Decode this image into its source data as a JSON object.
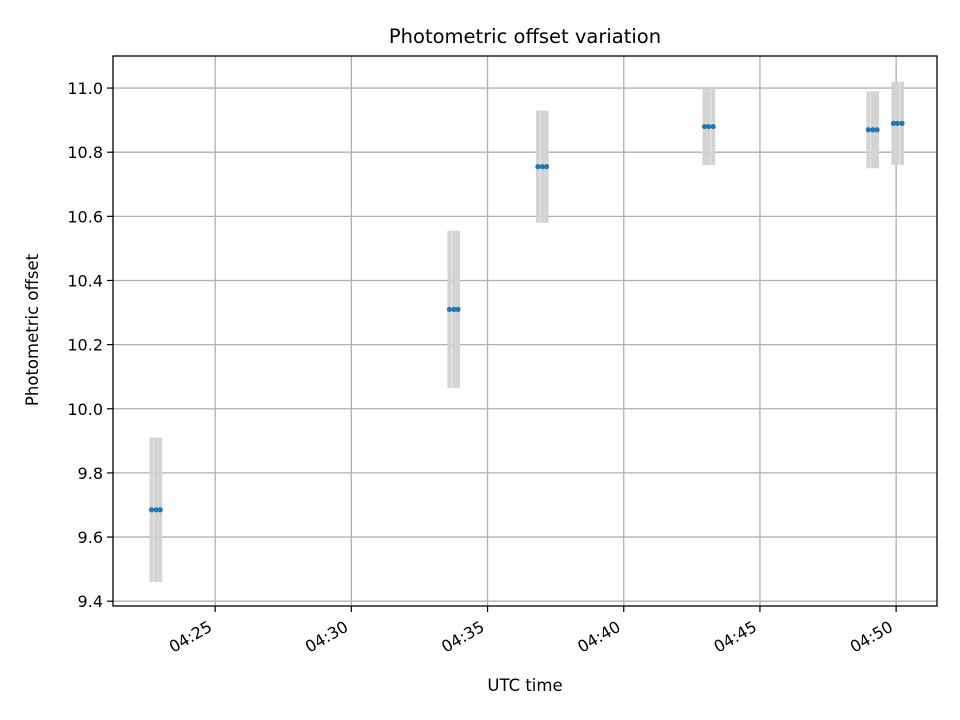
{
  "chart_data": {
    "type": "scatter",
    "title": "Photometric offset variation",
    "xlabel": "UTC time",
    "ylabel": "Photometric offset",
    "x_axis_type": "time",
    "xlim": [
      "04:21:15",
      "04:51:30"
    ],
    "ylim": [
      9.385,
      11.1
    ],
    "x_ticks": [
      "04:25",
      "04:30",
      "04:35",
      "04:40",
      "04:45",
      "04:50"
    ],
    "y_ticks": [
      "9.4",
      "9.6",
      "9.8",
      "10.0",
      "10.2",
      "10.4",
      "10.6",
      "10.8",
      "11.0"
    ],
    "grid": true,
    "marker_color": "#1f77b4",
    "errorbar_color": "#d3d3d3",
    "series": [
      {
        "points": [
          {
            "t": "04:22:40",
            "y": 9.685,
            "err": 0.225
          },
          {
            "t": "04:22:50",
            "y": 9.685,
            "err": 0.225
          },
          {
            "t": "04:22:59",
            "y": 9.685,
            "err": 0.225
          },
          {
            "t": "04:33:36",
            "y": 10.31,
            "err": 0.245
          },
          {
            "t": "04:33:46",
            "y": 10.31,
            "err": 0.245
          },
          {
            "t": "04:33:55",
            "y": 10.31,
            "err": 0.245
          },
          {
            "t": "04:36:51",
            "y": 10.755,
            "err": 0.175
          },
          {
            "t": "04:37:01",
            "y": 10.755,
            "err": 0.175
          },
          {
            "t": "04:37:10",
            "y": 10.755,
            "err": 0.175
          },
          {
            "t": "04:42:58",
            "y": 10.88,
            "err": 0.12
          },
          {
            "t": "04:43:07",
            "y": 10.88,
            "err": 0.12
          },
          {
            "t": "04:43:17",
            "y": 10.88,
            "err": 0.12
          },
          {
            "t": "04:48:59",
            "y": 10.87,
            "err": 0.12
          },
          {
            "t": "04:49:09",
            "y": 10.87,
            "err": 0.12
          },
          {
            "t": "04:49:18",
            "y": 10.87,
            "err": 0.12
          },
          {
            "t": "04:49:54",
            "y": 10.89,
            "err": 0.13
          },
          {
            "t": "04:50:03",
            "y": 10.89,
            "err": 0.13
          },
          {
            "t": "04:50:13",
            "y": 10.89,
            "err": 0.13
          }
        ]
      }
    ]
  }
}
